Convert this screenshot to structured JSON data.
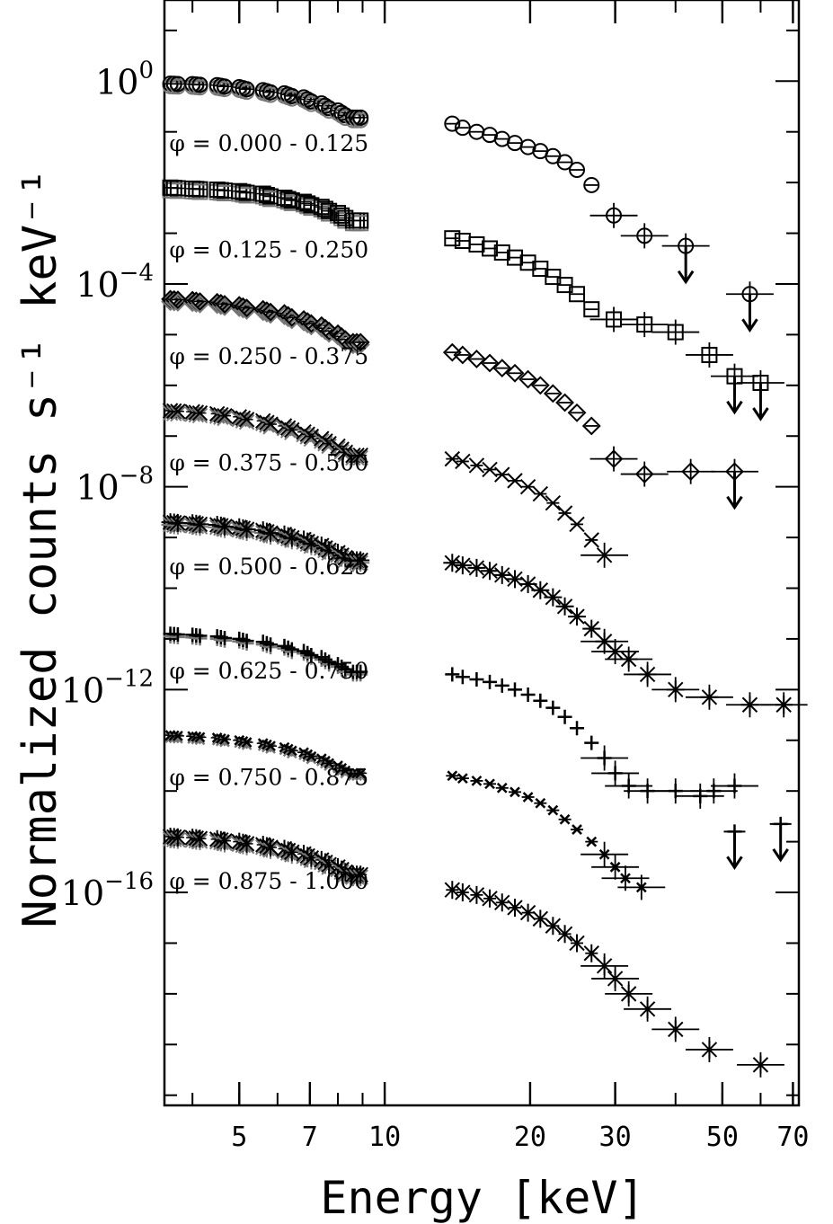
{
  "chart_data": {
    "type": "scatter",
    "title": "",
    "xlabel": "Energy [keV]",
    "ylabel": "Normalized counts s⁻¹ keV⁻¹",
    "xscale": "log",
    "yscale": "log",
    "xlim": [
      3.5,
      72
    ],
    "ylim": [
      -20.2,
      1.6
    ],
    "x_ticks": [
      5,
      7,
      10,
      20,
      30,
      50,
      70
    ],
    "x_tick_labels": [
      "5",
      "7",
      "10",
      "20",
      "30",
      "50",
      "70"
    ],
    "y_ticks": [
      0,
      -4,
      -8,
      -12,
      -16
    ],
    "y_tick_labels": [
      {
        "base": "10",
        "exp": "0"
      },
      {
        "base": "10",
        "exp": "−4"
      },
      {
        "base": "10",
        "exp": "−8"
      },
      {
        "base": "10",
        "exp": "−12"
      },
      {
        "base": "10",
        "exp": "−16"
      }
    ],
    "y_values_note": "values are log10 of normalized counts (spectra offset per phase bin for display)",
    "colors": {
      "data": "#000000",
      "second_instrument": "#777777",
      "axis": "#000000"
    },
    "series": [
      {
        "name": "φ = 0.000 - 0.125",
        "marker": "circle",
        "label_at": [
          5.4,
          -1.2
        ],
        "low_energy": {
          "x": [
            3.6,
            4.0,
            4.5,
            5.0,
            5.6,
            6.2,
            6.8,
            7.4,
            8.0,
            8.6
          ],
          "y": [
            -0.05,
            -0.06,
            -0.08,
            -0.12,
            -0.18,
            -0.24,
            -0.32,
            -0.44,
            -0.58,
            -0.72
          ]
        },
        "high_energy": {
          "x": [
            13.8,
            14.5,
            15.5,
            16.5,
            17.5,
            18.6,
            19.8,
            21.0,
            22.3,
            23.6,
            25.0,
            26.8,
            29.8,
            34.5,
            42.0,
            57.0
          ],
          "y": [
            -0.84,
            -0.92,
            -1.0,
            -1.06,
            -1.14,
            -1.22,
            -1.3,
            -1.38,
            -1.48,
            -1.6,
            -1.75,
            -2.05,
            -2.65,
            -3.05,
            -3.25,
            -4.2
          ],
          "upper_limits": [
            42.0,
            57.0
          ]
        }
      },
      {
        "name": "φ = 0.125 - 0.250",
        "marker": "square",
        "label_at": [
          5.4,
          -3.3
        ],
        "low_energy": {
          "x": [
            3.6,
            4.0,
            4.5,
            5.0,
            5.6,
            6.2,
            6.8,
            7.4,
            8.0,
            8.6
          ],
          "y": [
            -2.1,
            -2.12,
            -2.14,
            -2.17,
            -2.22,
            -2.3,
            -2.38,
            -2.48,
            -2.6,
            -2.75
          ]
        },
        "high_energy": {
          "x": [
            13.8,
            14.5,
            15.5,
            16.5,
            17.5,
            18.6,
            19.8,
            21.0,
            22.3,
            23.6,
            25.0,
            26.8,
            29.8,
            34.5,
            40.0,
            47.0,
            53.0,
            60.0
          ],
          "y": [
            -3.1,
            -3.15,
            -3.22,
            -3.3,
            -3.38,
            -3.48,
            -3.58,
            -3.7,
            -3.86,
            -4.02,
            -4.2,
            -4.5,
            -4.7,
            -4.8,
            -4.95,
            -5.4,
            -5.82,
            -5.95
          ],
          "upper_limits": [
            53.0,
            60.0
          ]
        }
      },
      {
        "name": "φ = 0.250 - 0.375",
        "marker": "diamond",
        "label_at": [
          5.4,
          -5.4
        ],
        "low_energy": {
          "x": [
            3.6,
            4.0,
            4.5,
            5.0,
            5.6,
            6.2,
            6.8,
            7.4,
            8.0,
            8.6
          ],
          "y": [
            -4.3,
            -4.32,
            -4.36,
            -4.42,
            -4.5,
            -4.58,
            -4.7,
            -4.82,
            -4.98,
            -5.15
          ]
        },
        "high_energy": {
          "x": [
            13.8,
            14.5,
            15.5,
            16.5,
            17.5,
            18.6,
            19.8,
            21.0,
            22.3,
            23.6,
            25.0,
            26.8,
            29.8,
            34.5,
            43.0,
            53.0
          ],
          "y": [
            -5.35,
            -5.4,
            -5.48,
            -5.56,
            -5.66,
            -5.76,
            -5.88,
            -6.0,
            -6.16,
            -6.34,
            -6.54,
            -6.8,
            -7.45,
            -7.75,
            -7.7,
            -7.7
          ],
          "upper_limits": [
            53.0
          ]
        }
      },
      {
        "name": "φ = 0.375 - 0.500",
        "marker": "x",
        "label_at": [
          5.4,
          -7.5
        ],
        "low_energy": {
          "x": [
            3.6,
            4.0,
            4.5,
            5.0,
            5.6,
            6.2,
            6.8,
            7.4,
            8.0,
            8.6
          ],
          "y": [
            -6.5,
            -6.52,
            -6.56,
            -6.62,
            -6.7,
            -6.8,
            -6.92,
            -7.05,
            -7.2,
            -7.38
          ]
        },
        "high_energy": {
          "x": [
            13.8,
            14.5,
            15.5,
            16.5,
            17.5,
            18.6,
            19.8,
            21.0,
            22.3,
            23.6,
            25.0,
            26.8,
            28.5
          ],
          "y": [
            -7.45,
            -7.5,
            -7.58,
            -7.66,
            -7.76,
            -7.88,
            -8.0,
            -8.14,
            -8.32,
            -8.52,
            -8.74,
            -9.05,
            -9.35
          ]
        }
      },
      {
        "name": "φ = 0.500 - 0.625",
        "marker": "asterisk",
        "label_at": [
          5.4,
          -9.55
        ],
        "low_energy": {
          "x": [
            3.6,
            4.0,
            4.5,
            5.0,
            5.6,
            6.2,
            6.8,
            7.4,
            8.0,
            8.6
          ],
          "y": [
            -8.7,
            -8.72,
            -8.75,
            -8.8,
            -8.86,
            -8.94,
            -9.04,
            -9.16,
            -9.3,
            -9.45
          ]
        },
        "high_energy": {
          "x": [
            13.8,
            14.5,
            15.5,
            16.5,
            17.5,
            18.6,
            19.8,
            21.0,
            22.3,
            23.6,
            25.0,
            26.8,
            28.5,
            30.0,
            32.0,
            35.0,
            40.0,
            47.0,
            57.0,
            67.0
          ],
          "y": [
            -9.5,
            -9.55,
            -9.6,
            -9.66,
            -9.74,
            -9.82,
            -9.92,
            -10.04,
            -10.18,
            -10.36,
            -10.56,
            -10.8,
            -11.05,
            -11.25,
            -11.4,
            -11.7,
            -12.0,
            -12.15,
            -12.3,
            -12.3
          ]
        }
      },
      {
        "name": "φ = 0.625 - 0.750",
        "marker": "plus",
        "label_at": [
          5.4,
          -11.6
        ],
        "low_energy": {
          "x": [
            3.6,
            4.0,
            4.5,
            5.0,
            5.6,
            6.2,
            6.8,
            7.4,
            8.0,
            8.6
          ],
          "y": [
            -10.9,
            -10.92,
            -10.95,
            -11.0,
            -11.06,
            -11.14,
            -11.24,
            -11.36,
            -11.5,
            -11.65
          ]
        },
        "high_energy": {
          "x": [
            13.8,
            14.5,
            15.5,
            16.5,
            17.5,
            18.6,
            19.8,
            21.0,
            22.3,
            23.6,
            25.0,
            26.8,
            28.5,
            30.0,
            32.0,
            35.0,
            40.0,
            45.0,
            48.0,
            53.0
          ],
          "y": [
            -11.7,
            -11.75,
            -11.8,
            -11.85,
            -11.92,
            -12.0,
            -12.1,
            -12.22,
            -12.36,
            -12.54,
            -12.76,
            -13.05,
            -13.35,
            -13.65,
            -13.9,
            -14.0,
            -14.0,
            -14.1,
            -14.0,
            -13.9
          ]
        }
      },
      {
        "name": "φ = 0.750 - 0.875",
        "marker": "cross",
        "label_at": [
          5.4,
          -13.7
        ],
        "low_energy": {
          "x": [
            3.6,
            4.0,
            4.5,
            5.0,
            5.6,
            6.2,
            6.8,
            7.4,
            8.0,
            8.6
          ],
          "y": [
            -12.9,
            -12.92,
            -12.95,
            -13.0,
            -13.06,
            -13.14,
            -13.24,
            -13.36,
            -13.5,
            -13.65
          ]
        },
        "high_energy": {
          "x": [
            13.8,
            14.5,
            15.5,
            16.5,
            17.5,
            18.6,
            19.8,
            21.0,
            22.3,
            23.6,
            25.0,
            26.8,
            28.5,
            30.0,
            31.5,
            34.0
          ],
          "y": [
            -13.7,
            -13.75,
            -13.8,
            -13.86,
            -13.94,
            -14.02,
            -14.12,
            -14.24,
            -14.38,
            -14.56,
            -14.76,
            -15.0,
            -15.25,
            -15.5,
            -15.72,
            -15.9
          ]
        }
      },
      {
        "name": "φ = 0.875 - 1.000",
        "marker": "asterisk-x",
        "label_at": [
          5.4,
          -15.75
        ],
        "low_energy": {
          "x": [
            3.6,
            4.0,
            4.5,
            5.0,
            5.6,
            6.2,
            6.8,
            7.4,
            8.0,
            8.6
          ],
          "y": [
            -14.9,
            -14.92,
            -14.95,
            -15.0,
            -15.06,
            -15.14,
            -15.24,
            -15.36,
            -15.5,
            -15.65
          ]
        },
        "high_energy": {
          "x": [
            13.8,
            14.5,
            15.5,
            16.5,
            17.5,
            18.6,
            19.8,
            21.0,
            22.3,
            23.6,
            25.0,
            26.8,
            28.5,
            30.0,
            32.0,
            35.0,
            40.0,
            47.0,
            60.0
          ],
          "y": [
            -15.95,
            -16.0,
            -16.05,
            -16.12,
            -16.2,
            -16.3,
            -16.4,
            -16.52,
            -16.66,
            -16.82,
            -17.0,
            -17.2,
            -17.45,
            -17.7,
            -18.0,
            -18.3,
            -18.7,
            -19.1,
            -19.4
          ]
        }
      }
    ],
    "extra_upper_limits": {
      "description": "isolated upper-limit points at high energy belonging to the phase 0.625 - 0.750 spectrum",
      "x": [
        53.0,
        66.0
      ],
      "y": [
        -14.8,
        -14.65
      ]
    }
  }
}
